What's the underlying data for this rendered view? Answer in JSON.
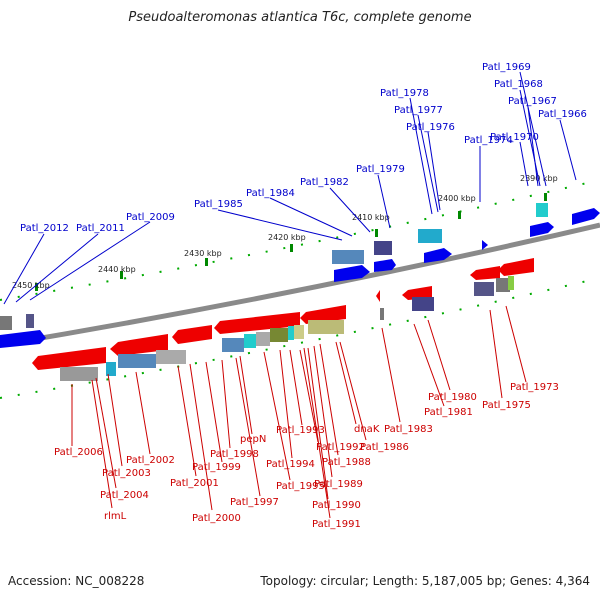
{
  "title": "Pseudoalteromonas atlantica T6c, complete genome",
  "accession": "Accession: NC_008228",
  "summary": "Topology: circular; Length: 5,187,005 bp; Genes: 4,364",
  "colors": {
    "forward_gene": "#0000ee",
    "reverse_gene": "#ee0000",
    "top_label": "#0000cc",
    "bottom_label": "#cc0000",
    "backbone": "#8a8a8a",
    "tick_mark": "#008800"
  },
  "ticks": [
    "2390 kbp",
    "2400 kbp",
    "2410 kbp",
    "2420 kbp",
    "2430 kbp",
    "2440 kbp",
    "2450 kbp"
  ],
  "top_genes": [
    "Patl_1969",
    "Patl_1968",
    "Patl_1967",
    "Patl_1966",
    "Patl_1978",
    "Patl_1977",
    "Patl_1976",
    "Patl_1974",
    "Patl_1970",
    "Patl_1979",
    "Patl_1982",
    "Patl_1984",
    "Patl_1985",
    "Patl_2009",
    "Patl_2012",
    "Patl_2011"
  ],
  "bottom_genes": [
    "Patl_1973",
    "Patl_1975",
    "Patl_1980",
    "Patl_1981",
    "Patl_1983",
    "dnaK",
    "Patl_1986",
    "Patl_1988",
    "Patl_1989",
    "Patl_1990",
    "Patl_1991",
    "Patl_1992",
    "Patl_1993",
    "Patl_1994",
    "Patl_1995",
    "pepN",
    "Patl_1998",
    "Patl_1999",
    "Patl_1997",
    "Patl_2001",
    "Patl_2000",
    "Patl_2002",
    "Patl_2003",
    "Patl_2004",
    "rlmL",
    "Patl_2006"
  ]
}
